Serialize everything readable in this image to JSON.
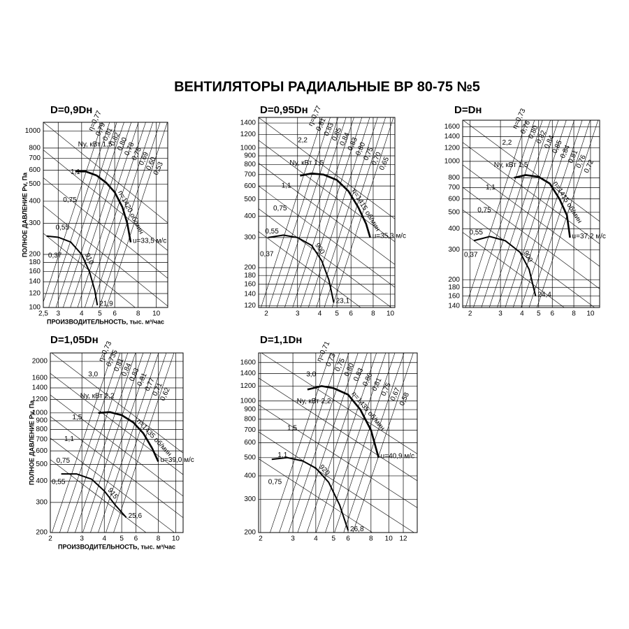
{
  "title": "ВЕНТИЛЯТОРЫ РАДИАЛЬНЫЕ ВР 80-75 №5",
  "chart_data": [
    {
      "type": "line",
      "title": "D=0,9Dн",
      "ylabel": "ПОЛНОЕ ДАВЛЕНИЕ Pv, Па",
      "xlabel": "ПРОИЗВОДИТЕЛЬНОСТЬ, тыс. м³/час",
      "log_x": true,
      "log_y": true,
      "grid": true,
      "xlim": [
        2.5,
        11.5
      ],
      "xticks": [
        {
          "value": 2.5,
          "label": "2,5"
        },
        3,
        4,
        5,
        6,
        8,
        10
      ],
      "ylim": [
        100,
        1120
      ],
      "yticks": [
        100,
        120,
        140,
        160,
        180,
        200,
        300,
        400,
        500,
        600,
        700,
        800,
        1000
      ],
      "series": [
        {
          "name": "n=1420 об/мин",
          "end_label": "u=33,5 м/с",
          "color": "#000000",
          "x": [
            3.7,
            4.2,
            4.8,
            5.4,
            6,
            6.6,
            7,
            7.3
          ],
          "values": [
            590,
            590,
            560,
            510,
            450,
            370,
            300,
            234
          ]
        },
        {
          "name": "910",
          "end_label": "21,9",
          "color": "#000000",
          "x": [
            2.6,
            3,
            3.5,
            4,
            4.4,
            4.7,
            4.85
          ],
          "values": [
            254,
            250,
            235,
            200,
            160,
            125,
            103
          ]
        }
      ],
      "efficiency_labels": [
        "η=0,77",
        "0,79",
        "0,81",
        "0,82",
        "0,80",
        "0,78",
        "0,75",
        "0,69",
        "0,60",
        "0,53"
      ],
      "power_labels": [
        "Nу, кВт 1,5",
        "1,1",
        "0,75",
        "0,55",
        "0,37"
      ]
    },
    {
      "type": "line",
      "title": "D=0,95Dн",
      "log_x": true,
      "log_y": true,
      "grid": true,
      "xlim": [
        1.81,
        10.6
      ],
      "xticks": [
        2,
        3,
        4,
        5,
        6,
        8,
        10
      ],
      "ylim": [
        117,
        1510
      ],
      "yticks": [
        120,
        140,
        160,
        180,
        200,
        300,
        400,
        500,
        600,
        700,
        800,
        900,
        1000,
        1200,
        1400
      ],
      "series": [
        {
          "name": "n=1415 об/мин",
          "end_label": "u=35,3 м/с",
          "color": "#000000",
          "x": [
            3.1,
            3.6,
            4.2,
            5,
            5.8,
            6.6,
            7.3,
            7.7
          ],
          "values": [
            690,
            710,
            700,
            650,
            560,
            450,
            360,
            300
          ]
        },
        {
          "name": "900",
          "end_label": "23,1",
          "color": "#000000",
          "x": [
            2.05,
            2.5,
            3,
            3.6,
            4.1,
            4.5,
            4.8
          ],
          "values": [
            300,
            310,
            300,
            270,
            220,
            170,
            125
          ]
        }
      ],
      "efficiency_labels": [
        "η=0,77",
        "0,81",
        "0,83",
        "0,85",
        "0,84",
        "0,83",
        "0,80",
        "0,75",
        "0,70",
        "0,65"
      ],
      "power_labels": [
        "2,2",
        "Nу, кВт 1,5",
        "1,1",
        "0,75",
        "0,55",
        "0,37"
      ]
    },
    {
      "type": "line",
      "title": "D=Dн",
      "log_x": true,
      "log_y": true,
      "grid": true,
      "xlim": [
        1.81,
        11.3
      ],
      "xticks": [
        2,
        3,
        4,
        5,
        6,
        8,
        10
      ],
      "ylim": [
        137,
        1750
      ],
      "yticks": [
        140,
        160,
        180,
        200,
        300,
        400,
        500,
        600,
        700,
        800,
        1000,
        1200,
        1400,
        1600
      ],
      "series": [
        {
          "name": "n=1415 об/мин",
          "end_label": "u=37,2 м/с",
          "color": "#000000",
          "x": [
            3.6,
            4.2,
            5,
            5.8,
            6.6,
            7.3,
            7.6
          ],
          "values": [
            800,
            830,
            810,
            740,
            600,
            480,
            354
          ]
        },
        {
          "name": "900",
          "end_label": "24,4",
          "color": "#000000",
          "x": [
            2.1,
            2.6,
            3.2,
            3.9,
            4.4,
            4.8
          ],
          "values": [
            340,
            360,
            340,
            290,
            230,
            160
          ]
        }
      ],
      "efficiency_labels": [
        "η=0,73",
        "0,76",
        "0,80",
        "0,82",
        "0,84",
        "0,85",
        "0,84",
        "0,81",
        "0,76",
        "0,72"
      ],
      "power_labels": [
        "2,2",
        "Nу, кВт 1,5",
        "1,1",
        "0,75",
        "0,55",
        "0,37"
      ]
    },
    {
      "type": "line",
      "title": "D=1,05Dн",
      "ylabel": "ПОЛНОЕ ДАВЛЕНИЕ Pv, Па",
      "xlabel": "ПРОИЗВОДИТЕЛЬНОСТЬ, тыс. м³/час",
      "log_x": true,
      "log_y": true,
      "grid": true,
      "xlim": [
        2,
        11
      ],
      "xticks": [
        2,
        3,
        4,
        5,
        6,
        8,
        10
      ],
      "ylim": [
        200,
        2240
      ],
      "yticks": [
        200,
        300,
        400,
        500,
        600,
        700,
        800,
        900,
        1000,
        1200,
        1400,
        1600,
        2000
      ],
      "series": [
        {
          "name": "n=1435 об/мин",
          "end_label": "u=39,0 м/с",
          "color": "#000000",
          "x": [
            3.7,
            4.3,
            5,
            5.8,
            6.6,
            7.4,
            8
          ],
          "values": [
            1000,
            1010,
            970,
            880,
            760,
            620,
            520
          ]
        },
        {
          "name": "915",
          "end_label": "25,6",
          "color": "#000000",
          "x": [
            2.3,
            2.8,
            3.4,
            4,
            4.6,
            5.3
          ],
          "values": [
            440,
            440,
            410,
            350,
            290,
            245
          ]
        }
      ],
      "efficiency_labels": [
        "η=0,73",
        "0,735",
        "0,81",
        "0,84",
        "0,83",
        "0,81",
        "0,77",
        "0,71",
        "0,62"
      ],
      "power_labels": [
        "3,0",
        "Nу, кВт 2,2",
        "1,5",
        "1,1",
        "0,75",
        "0,55"
      ]
    },
    {
      "type": "line",
      "title": "D=1,1Dн",
      "log_x": true,
      "log_y": true,
      "grid": true,
      "xlim": [
        1.95,
        14.3
      ],
      "xticks": [
        2,
        3,
        4,
        5,
        6,
        8,
        10,
        12
      ],
      "ylim": [
        200,
        1800
      ],
      "yticks": [
        200,
        300,
        400,
        500,
        600,
        700,
        800,
        900,
        1000,
        1200,
        1400,
        1600
      ],
      "series": [
        {
          "name": "n=1435 об/мин",
          "end_label": "u=40,9 м/с",
          "color": "#000000",
          "x": [
            3.6,
            4.3,
            5,
            6,
            7,
            8,
            8.8
          ],
          "values": [
            1150,
            1200,
            1170,
            1080,
            900,
            700,
            500
          ]
        },
        {
          "name": "920",
          "end_label": "26,8",
          "color": "#000000",
          "x": [
            2.3,
            2.8,
            3.4,
            4,
            4.7,
            5.4,
            6
          ],
          "values": [
            490,
            500,
            480,
            440,
            370,
            280,
            205
          ]
        }
      ],
      "efficiency_labels": [
        "η=0,71",
        "0,73",
        "0,75",
        "0,80",
        "0,83",
        "0,80",
        "0,81",
        "0,75",
        "0,67",
        "0,58"
      ],
      "power_labels": [
        "3,0",
        "Nу, кВт 2,2",
        "1,5",
        "1,1",
        "0,75"
      ]
    }
  ]
}
